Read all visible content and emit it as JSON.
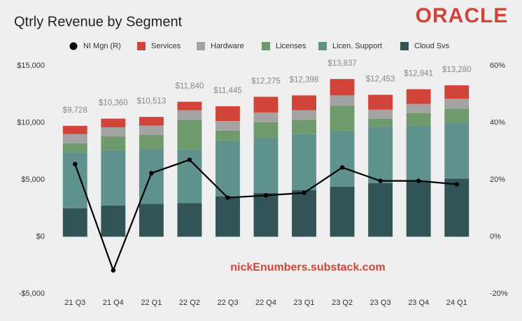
{
  "chart_data": {
    "type": "bar",
    "stacked": true,
    "title": "Qtrly Revenue by Segment",
    "logo": "ORACLE",
    "watermark": "nickEnumbers.substack.com",
    "categories": [
      "21 Q3",
      "21 Q4",
      "22 Q1",
      "22 Q2",
      "22 Q3",
      "22 Q4",
      "23 Q1",
      "23 Q2",
      "23 Q3",
      "23 Q4",
      "24 Q1"
    ],
    "series": [
      {
        "name": "NI Mgn (R)",
        "type": "line",
        "axis": "y2",
        "color": "#000000",
        "values": [
          25.5,
          -11.8,
          22.3,
          27,
          13.7,
          14.5,
          15.4,
          24.3,
          19.6,
          19.6,
          18.4
        ]
      },
      {
        "name": "Services",
        "color": "#d0443a",
        "values": [
          728,
          760,
          763,
          740,
          1295,
          1375,
          1298,
          1437,
          1303,
          1291,
          1180
        ]
      },
      {
        "name": "Hardware",
        "color": "#a3a3a3",
        "values": [
          800,
          800,
          800,
          850,
          850,
          850,
          850,
          900,
          800,
          800,
          900
        ]
      },
      {
        "name": "Licenses",
        "color": "#6f9a6c",
        "values": [
          800,
          1200,
          1250,
          2600,
          850,
          1400,
          1250,
          2200,
          750,
          1100,
          1200
        ]
      },
      {
        "name": "Licen. Support",
        "color": "#5f918d",
        "values": [
          4900,
          4850,
          4800,
          4700,
          4900,
          4800,
          4900,
          4900,
          4900,
          4850,
          4900
        ]
      },
      {
        "name": "Cloud Svs",
        "color": "#335457",
        "values": [
          2500,
          2750,
          2900,
          2950,
          3550,
          3850,
          4100,
          4400,
          4700,
          4900,
          5100
        ]
      }
    ],
    "totals": {
      "values": [
        9728,
        10360,
        10513,
        11840,
        11445,
        12275,
        12398,
        13837,
        12453,
        12941,
        13280
      ],
      "value_labels": [
        "$9,728",
        "$10,360",
        "$10,513",
        "$11,840",
        "$11,445",
        "$12,275",
        "$12,398",
        "$13,837",
        "$12,453",
        "$12,941",
        "$13,280"
      ]
    },
    "ylim": [
      -5000,
      15000
    ],
    "yticks": [
      {
        "value": -5000,
        "label": "-$5,000"
      },
      {
        "value": 0,
        "label": "$0"
      },
      {
        "value": 5000,
        "label": "$5,000"
      },
      {
        "value": 10000,
        "label": "$10,000"
      },
      {
        "value": 15000,
        "label": "$15,000"
      }
    ],
    "y2lim": [
      -20,
      60
    ],
    "y2ticks": [
      {
        "value": -20,
        "label": "-20%"
      },
      {
        "value": 0,
        "label": "0%"
      },
      {
        "value": 20,
        "label": "20%"
      },
      {
        "value": 40,
        "label": "40%"
      },
      {
        "value": 60,
        "label": "60%"
      }
    ],
    "grid": false
  }
}
